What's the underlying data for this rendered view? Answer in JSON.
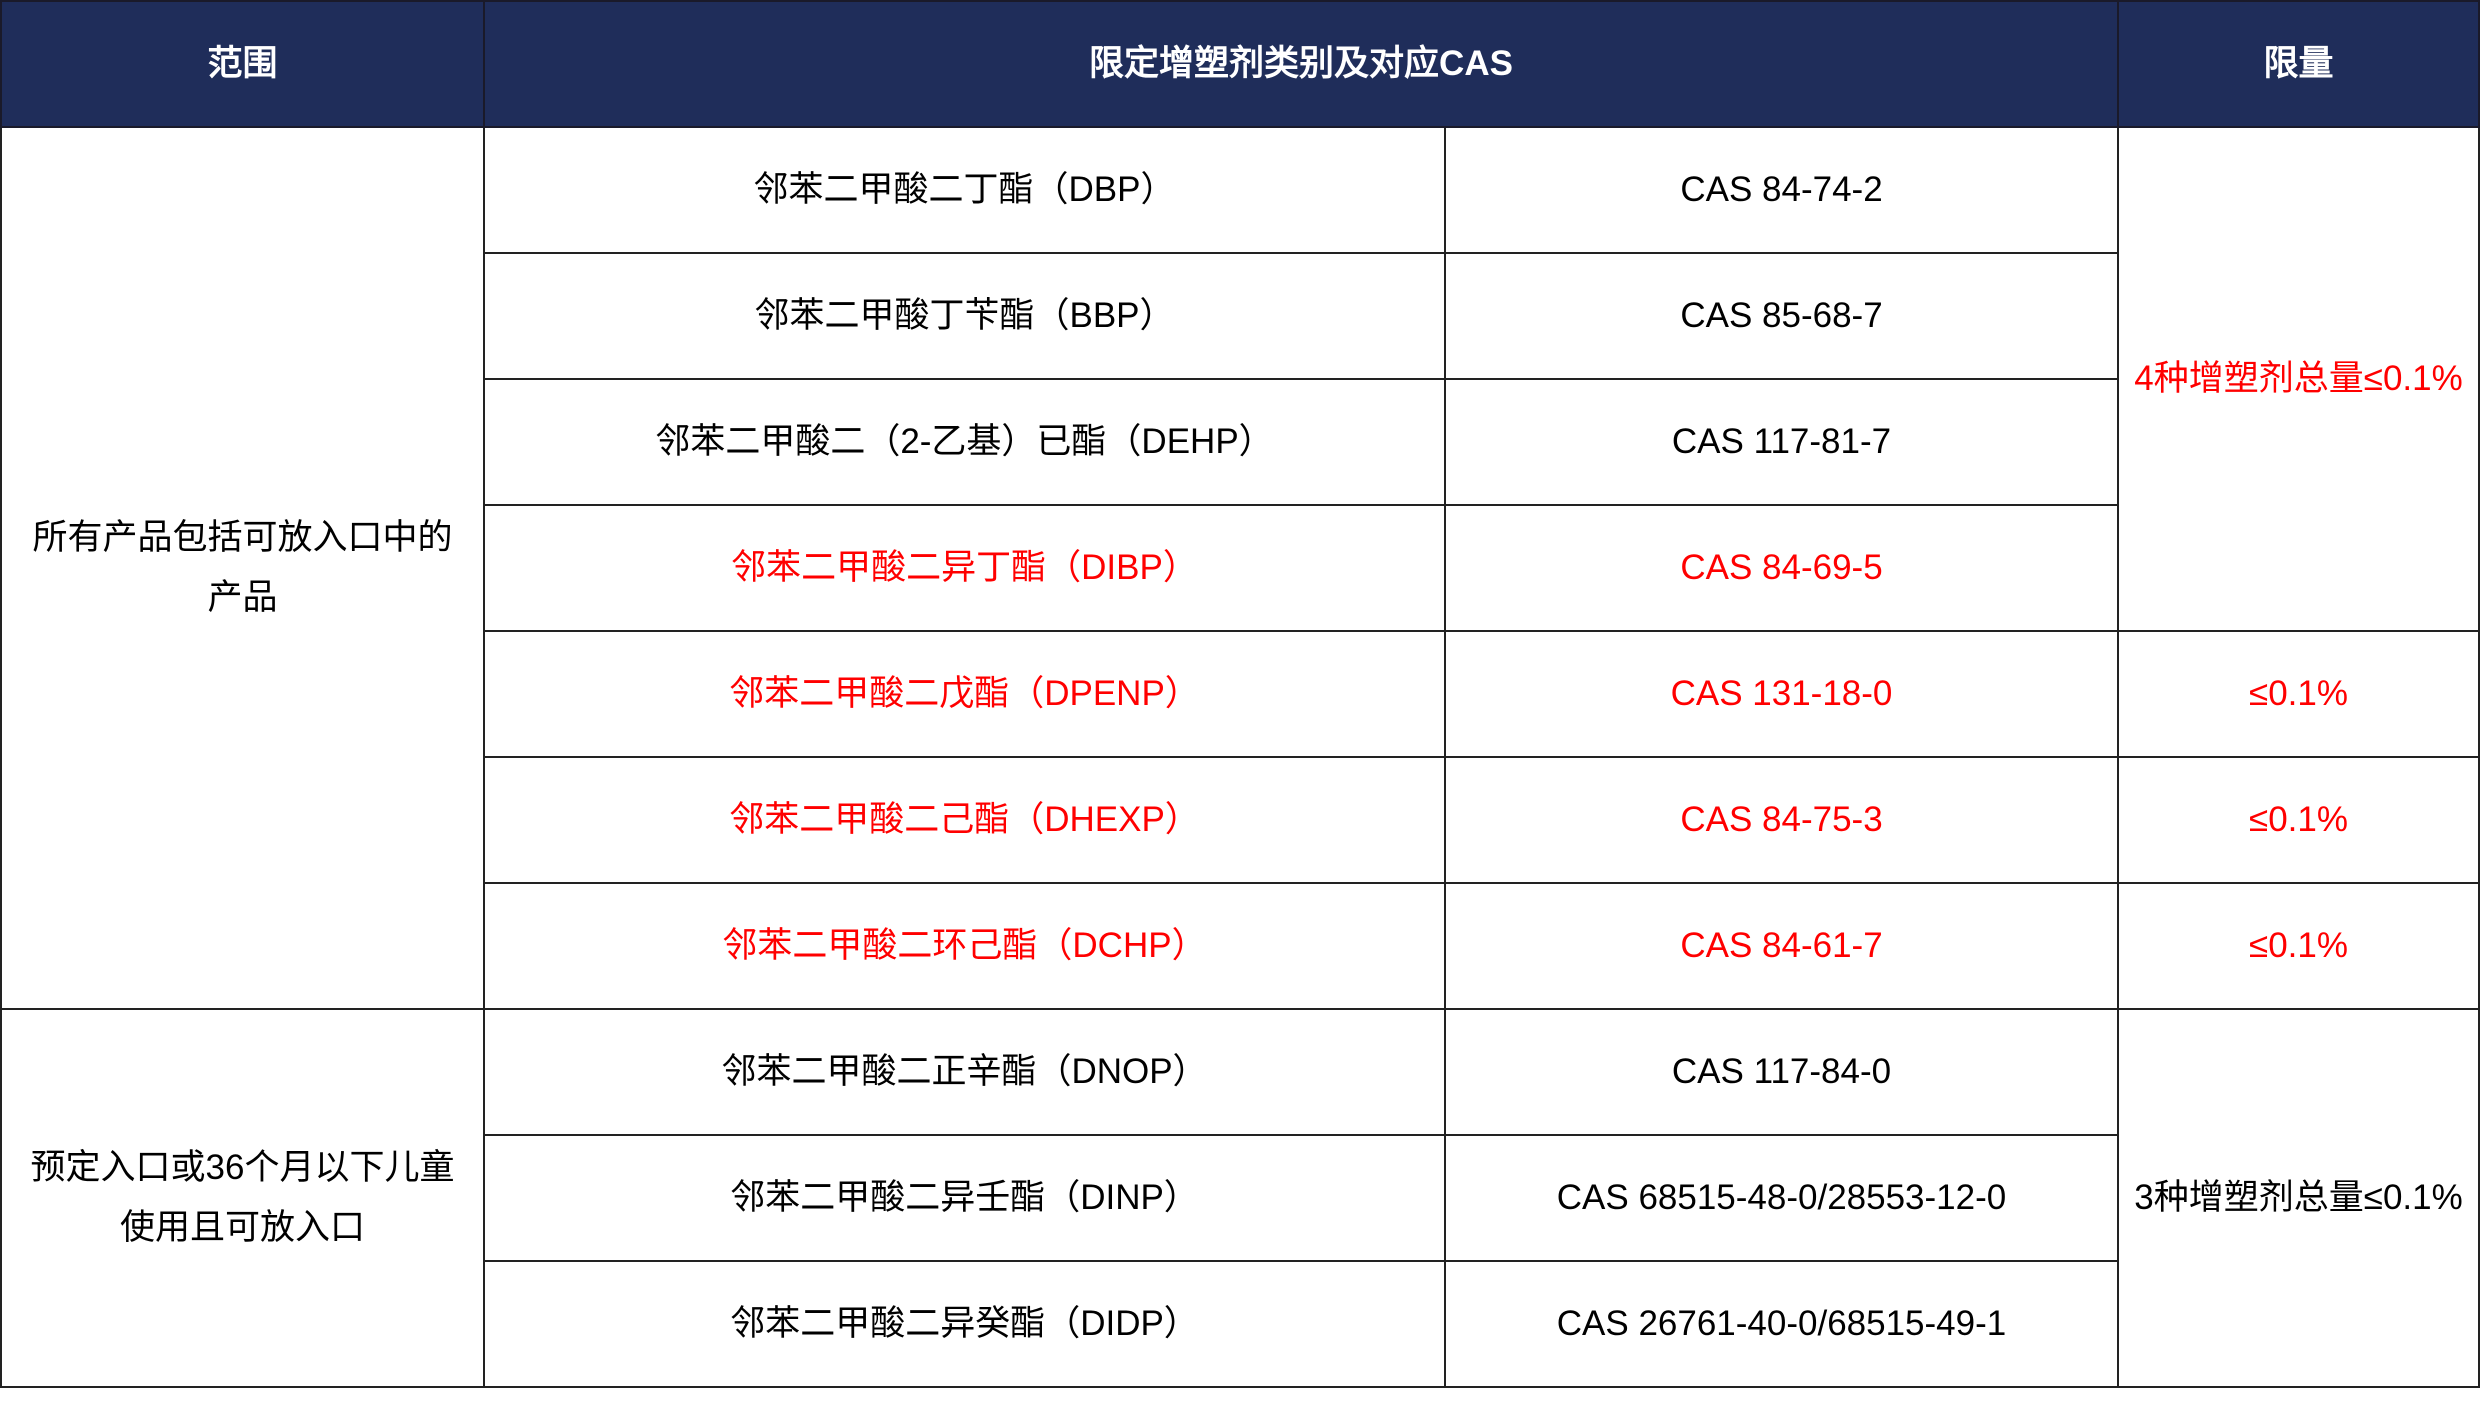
{
  "header": {
    "scope": "范围",
    "plasticizer": "限定增塑剂类别及对应CAS",
    "limit": "限量"
  },
  "colors": {
    "header_bg": "#1f2d5a",
    "highlight": "#ff0000"
  },
  "groups": [
    {
      "scope": "所有产品包括可放入口中的产品",
      "rows": [
        {
          "name": "邻苯二甲酸二丁酯（DBP）",
          "cas": "CAS 84-74-2",
          "red": false
        },
        {
          "name": "邻苯二甲酸丁苄酯（BBP）",
          "cas": "CAS 85-68-7",
          "red": false
        },
        {
          "name": "邻苯二甲酸二（2-乙基）已酯（DEHP）",
          "cas": "CAS 117-81-7",
          "red": false
        },
        {
          "name": "邻苯二甲酸二异丁酯（DIBP）",
          "cas": "CAS 84-69-5",
          "red": true
        },
        {
          "name": "邻苯二甲酸二戊酯（DPENP）",
          "cas": "CAS 131-18-0",
          "red": true,
          "limit": "≤0.1%"
        },
        {
          "name": "邻苯二甲酸二己酯（DHEXP）",
          "cas": "CAS 84-75-3",
          "red": true,
          "limit": "≤0.1%"
        },
        {
          "name": "邻苯二甲酸二环己酯（DCHP）",
          "cas": "CAS 84-61-7",
          "red": true,
          "limit": "≤0.1%"
        }
      ],
      "group_limit": "4种增塑剂总量≤0.1%"
    },
    {
      "scope": "预定入口或36个月以下儿童使用且可放入口",
      "rows": [
        {
          "name": "邻苯二甲酸二正辛酯（DNOP）",
          "cas": "CAS 117-84-0",
          "red": false
        },
        {
          "name": "邻苯二甲酸二异壬酯（DINP）",
          "cas": "CAS 68515-48-0/28553-12-0",
          "red": false
        },
        {
          "name": "邻苯二甲酸二异癸酯（DIDP）",
          "cas": "CAS 26761-40-0/68515-49-1",
          "red": false
        }
      ],
      "group_limit": "3种增塑剂总量≤0.1%"
    }
  ]
}
